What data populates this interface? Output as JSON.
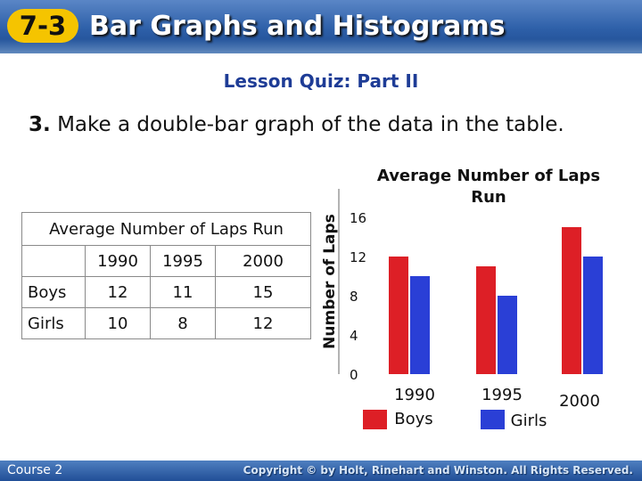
{
  "header": {
    "badge": "7-3",
    "title": "Bar Graphs and Histograms"
  },
  "subtitle": "Lesson Quiz: Part II",
  "question": {
    "number": "3.",
    "text": "Make a double-bar graph of the data in the table."
  },
  "table": {
    "caption": "Average Number of Laps Run",
    "columns": [
      "",
      "1990",
      "1995",
      "2000"
    ],
    "rows": [
      {
        "label": "Boys",
        "values": [
          "12",
          "11",
          "15"
        ]
      },
      {
        "label": "Girls",
        "values": [
          "10",
          "8",
          "12"
        ]
      }
    ]
  },
  "chart_data": {
    "type": "bar",
    "title": "Average Number of Laps Run",
    "ylabel": "Number of Laps",
    "xlabel": "",
    "categories": [
      "1990",
      "1995",
      "2000"
    ],
    "series": [
      {
        "name": "Boys",
        "color": "#dd1f26",
        "values": [
          12,
          11,
          15
        ]
      },
      {
        "name": "Girls",
        "color": "#2a3fd6",
        "values": [
          10,
          8,
          12
        ]
      }
    ],
    "ylim": [
      0,
      16
    ],
    "yticks": [
      "0",
      "4",
      "8",
      "12",
      "16"
    ],
    "grid": false,
    "legend": "bottom"
  },
  "footer": {
    "course": "Course 2",
    "copyright": "Copyright © by Holt, Rinehart and Winston. All Rights Reserved."
  }
}
